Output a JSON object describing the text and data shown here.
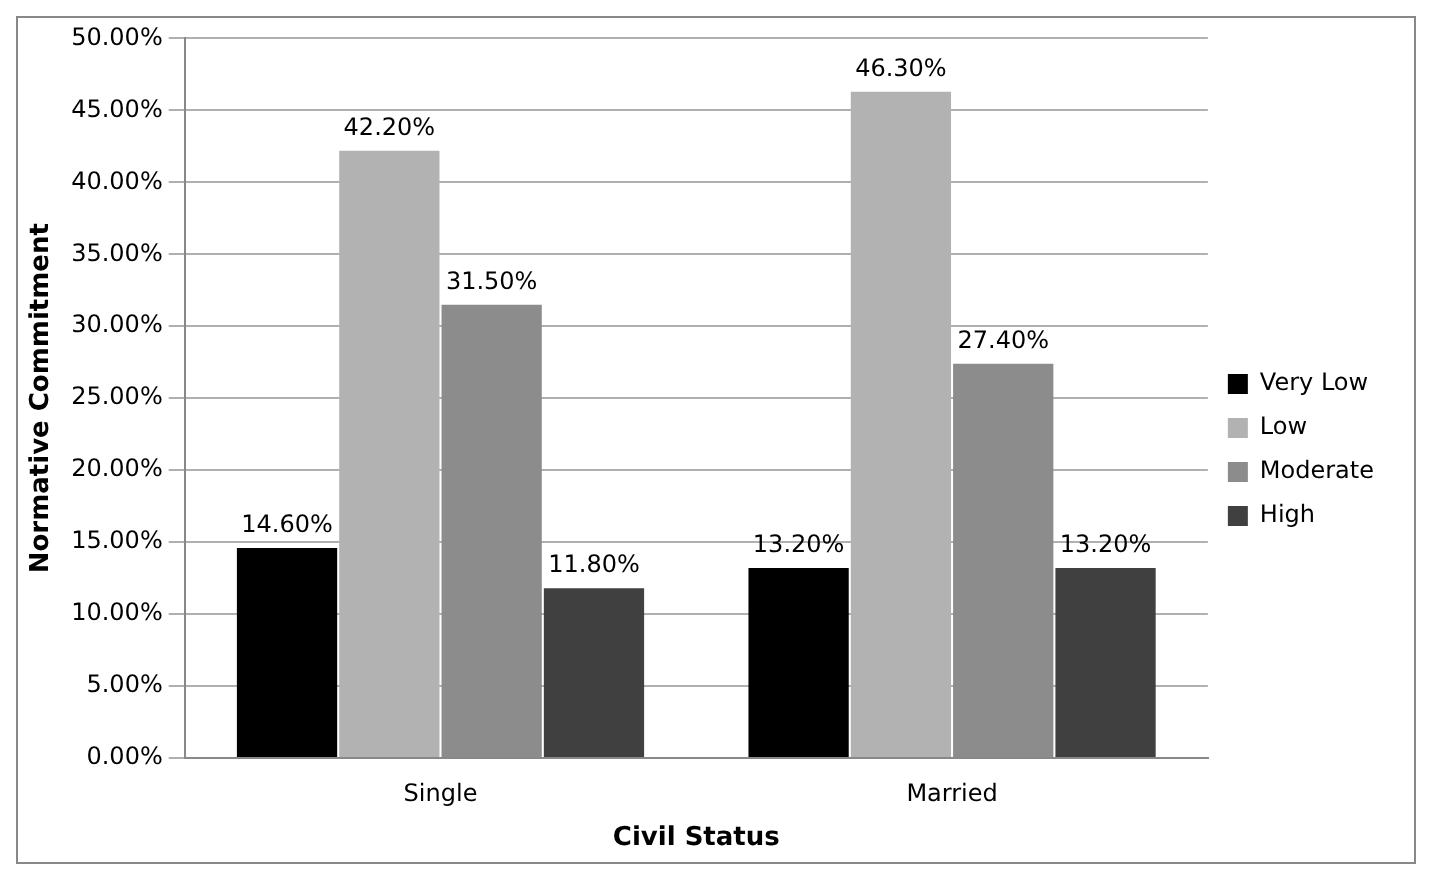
{
  "chart_data": {
    "type": "bar",
    "xlabel": "Civil Status",
    "ylabel": "Normative Commitment",
    "categories": [
      "Single",
      "Married"
    ],
    "series": [
      {
        "name": "Very Low",
        "color": "#000000",
        "values": [
          14.6,
          13.2
        ],
        "value_labels": [
          "14.60%",
          "13.20%"
        ]
      },
      {
        "name": "Low",
        "color": "#b2b2b2",
        "values": [
          42.2,
          46.3
        ],
        "value_labels": [
          "42.20%",
          "46.30%"
        ]
      },
      {
        "name": "Moderate",
        "color": "#8c8c8c",
        "values": [
          31.5,
          27.4
        ],
        "value_labels": [
          "31.50%",
          "27.40%"
        ]
      },
      {
        "name": "High",
        "color": "#404040",
        "values": [
          11.8,
          13.2
        ],
        "value_labels": [
          "11.80%",
          "13.20%"
        ]
      }
    ],
    "ylim": [
      0,
      50
    ],
    "yticks": [
      {
        "value": 0,
        "label": "0.00%"
      },
      {
        "value": 5,
        "label": "5.00%"
      },
      {
        "value": 10,
        "label": "10.00%"
      },
      {
        "value": 15,
        "label": "15.00%"
      },
      {
        "value": 20,
        "label": "20.00%"
      },
      {
        "value": 25,
        "label": "25.00%"
      },
      {
        "value": 30,
        "label": "30.00%"
      },
      {
        "value": 35,
        "label": "35.00%"
      },
      {
        "value": 40,
        "label": "40.00%"
      },
      {
        "value": 45,
        "label": "45.00%"
      },
      {
        "value": 50,
        "label": "50.00%"
      }
    ],
    "grid": "y",
    "legend": "right"
  }
}
